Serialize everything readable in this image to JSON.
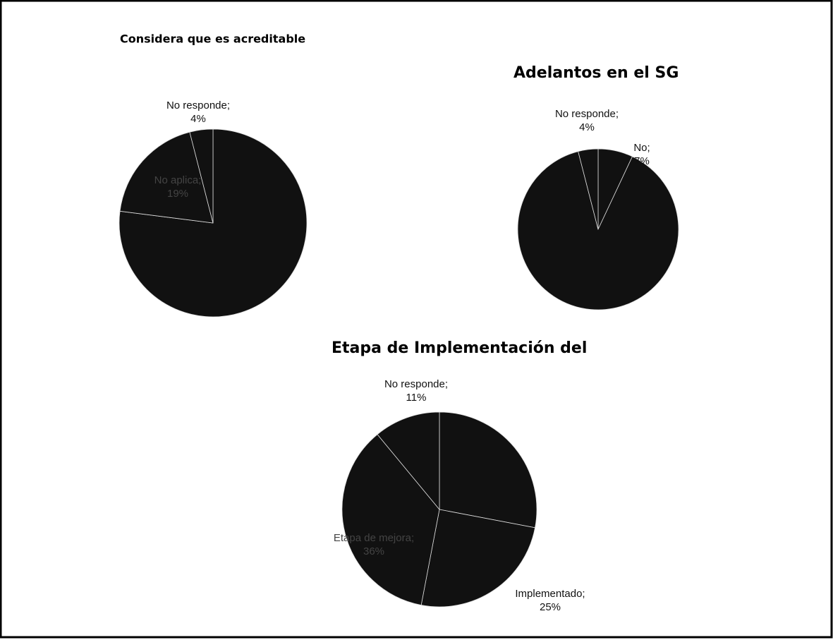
{
  "chart_data": [
    {
      "type": "pie",
      "title": "Considera que es acreditable",
      "categories": [
        null,
        "No aplica;",
        "No responde;"
      ],
      "values": [
        77,
        19,
        4
      ],
      "value_labels": [
        null,
        "19%",
        "4%"
      ],
      "color": "#111111"
    },
    {
      "type": "pie",
      "title": "Adelantos en el SG",
      "categories": [
        "No;",
        null,
        "No responde;"
      ],
      "values": [
        7,
        89,
        4
      ],
      "value_labels": [
        "7%",
        null,
        "4%"
      ],
      "color": "#111111"
    },
    {
      "type": "pie",
      "title": "Etapa de Implementación del",
      "categories": [
        null,
        "Implementado;",
        "Etapa de mejora;",
        "No responde;"
      ],
      "values": [
        28,
        25,
        36,
        11
      ],
      "value_labels": [
        null,
        "25%",
        "36%",
        "11%"
      ],
      "color": "#111111"
    }
  ]
}
